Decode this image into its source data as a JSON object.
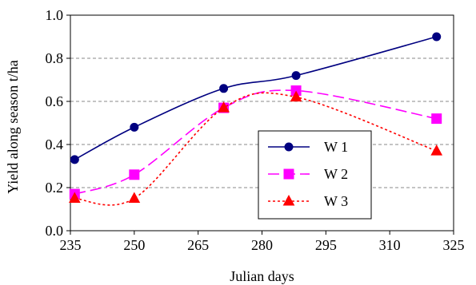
{
  "chart_data": {
    "type": "line",
    "title": "",
    "xlabel": "Julian days",
    "ylabel": "Yield along season  t/ha",
    "xlim": [
      235,
      325
    ],
    "ylim": [
      0.0,
      1.0
    ],
    "xticks": [
      235,
      250,
      265,
      280,
      295,
      310,
      325
    ],
    "yticks": [
      0.0,
      0.2,
      0.4,
      0.6,
      0.8,
      1.0
    ],
    "xtick_labels": [
      "235",
      "250",
      "265",
      "280",
      "295",
      "310",
      "325"
    ],
    "ytick_labels": [
      "0.0",
      "0.2",
      "0.4",
      "0.6",
      "0.8",
      "1.0"
    ],
    "grid": "horizontal dashed",
    "legend_position": "center-right",
    "series": [
      {
        "name": "W 1",
        "color": "#000080",
        "line_style": "solid",
        "marker": "circle",
        "x": [
          236,
          250,
          271,
          288,
          321
        ],
        "y": [
          0.33,
          0.48,
          0.66,
          0.72,
          0.9
        ]
      },
      {
        "name": "W 2",
        "color": "#ff00ff",
        "line_style": "long-dash",
        "marker": "square",
        "x": [
          236,
          250,
          271,
          288,
          321
        ],
        "y": [
          0.17,
          0.26,
          0.57,
          0.65,
          0.52
        ]
      },
      {
        "name": "W 3",
        "color": "#ff0000",
        "line_style": "dotted",
        "marker": "triangle",
        "x": [
          236,
          250,
          271,
          288,
          321
        ],
        "y": [
          0.15,
          0.15,
          0.57,
          0.62,
          0.37
        ]
      }
    ]
  }
}
